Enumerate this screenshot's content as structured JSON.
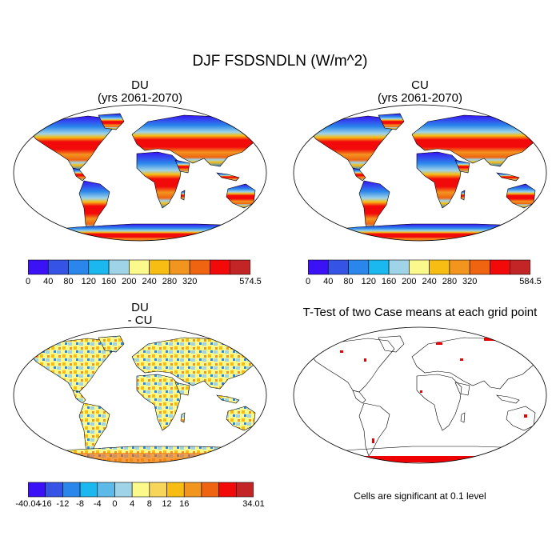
{
  "figure": {
    "title": "DJF FSDSNDLN (W/m^2)",
    "note": "Cells are significant at 0.1 level"
  },
  "panels": [
    {
      "id": "du",
      "title_line1": "DU",
      "title_line2": "(yrs 2061-2070)",
      "colorbar": {
        "colors": [
          "#3a12f5",
          "#3554e6",
          "#2a86ea",
          "#1ab8ef",
          "#9fd3e8",
          "#fbf98c",
          "#f7bd13",
          "#f2951f",
          "#ef6411",
          "#f20a0a",
          "#c32526"
        ],
        "labels": [
          "0",
          "40",
          "80",
          "120",
          "160",
          "200",
          "240",
          "280",
          "320",
          "574.5"
        ]
      }
    },
    {
      "id": "cu",
      "title_line1": "CU",
      "title_line2": "(yrs 2061-2070)",
      "colorbar": {
        "colors": [
          "#3a12f5",
          "#3554e6",
          "#2a86ea",
          "#1ab8ef",
          "#9fd3e8",
          "#fbf98c",
          "#f7bd13",
          "#f2951f",
          "#ef6411",
          "#f20a0a",
          "#c32526"
        ],
        "labels": [
          "0",
          "40",
          "80",
          "120",
          "160",
          "200",
          "240",
          "280",
          "320",
          "584.5"
        ]
      }
    },
    {
      "id": "diff",
      "title_line1": "DU",
      "title_line2": "- CU",
      "colorbar": {
        "colors": [
          "#3a12f5",
          "#3554e6",
          "#2a86ea",
          "#1ab8ef",
          "#5db9e8",
          "#9fd3e8",
          "#fbf98c",
          "#f7d45a",
          "#f7bd13",
          "#f2951f",
          "#ef6411",
          "#f20a0a",
          "#c32526"
        ],
        "labels": [
          "-40.04",
          "-16",
          "-12",
          "-8",
          "-4",
          "0",
          "4",
          "8",
          "12",
          "16",
          "34.01"
        ]
      }
    },
    {
      "id": "ttest",
      "title_line1": "T-Test of two Case means at each grid point",
      "title_line2": ""
    }
  ],
  "colors": {
    "cold": "#3a12f5",
    "warm": "#f20a0a",
    "significant": "#ee0000",
    "coast": "#000000"
  }
}
